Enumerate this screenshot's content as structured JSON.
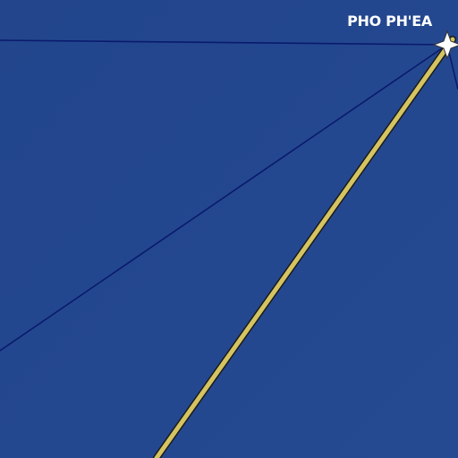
{
  "map": {
    "background_color": "#24478f",
    "place_label": "PHO PH'EA",
    "road_color": "#d4c462",
    "road_casing_color": "#1a1a1a",
    "boundary_color": "#0a1a6e",
    "marker_color": "#ffffff",
    "marker_icon": "star-marker-icon"
  }
}
